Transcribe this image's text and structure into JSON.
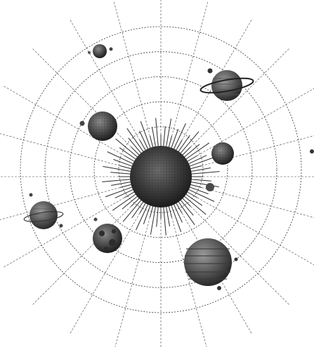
{
  "illustration": {
    "subject": "solar-system",
    "ink_color": "#2a2a2a",
    "background": "#ffffff",
    "central_body": "sun",
    "planets": [
      "saturn-like-ringed-planet",
      "small-moon-top",
      "brown-textured-planet",
      "cratered-planet-right",
      "ringed-planet-left",
      "cratered-planet-lower",
      "gas-giant-lower-right"
    ]
  }
}
